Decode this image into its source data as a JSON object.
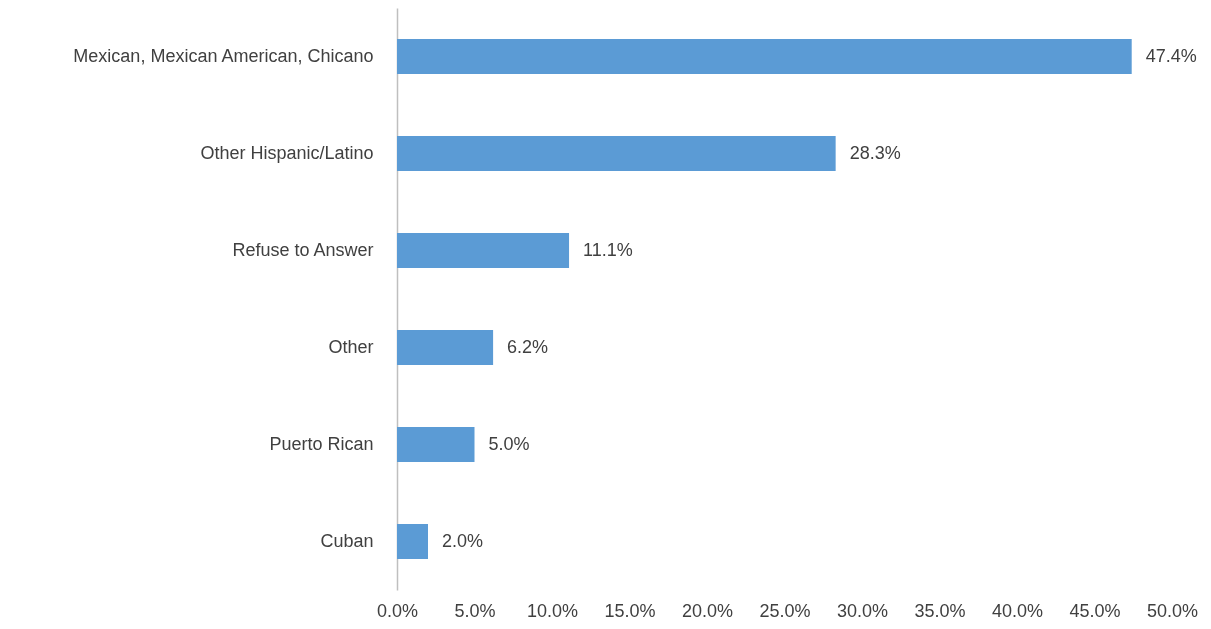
{
  "chart_data": {
    "type": "bar",
    "orientation": "horizontal",
    "categories": [
      "Mexican, Mexican American, Chicano",
      "Other Hispanic/Latino",
      "Refuse to Answer",
      "Other",
      "Puerto Rican",
      "Cuban"
    ],
    "values": [
      47.4,
      28.3,
      11.1,
      6.2,
      5.0,
      2.0
    ],
    "value_labels": [
      "47.4%",
      "28.3%",
      "11.1%",
      "6.2%",
      "5.0%",
      "2.0%"
    ],
    "color": "#5b9bd5",
    "xlim": [
      0,
      50
    ],
    "xticks": [
      {
        "value": 0,
        "label": "0.0%"
      },
      {
        "value": 5,
        "label": "5.0%"
      },
      {
        "value": 10,
        "label": "10.0%"
      },
      {
        "value": 15,
        "label": "15.0%"
      },
      {
        "value": 20,
        "label": "20.0%"
      },
      {
        "value": 25,
        "label": "25.0%"
      },
      {
        "value": 30,
        "label": "30.0%"
      },
      {
        "value": 35,
        "label": "35.0%"
      },
      {
        "value": 40,
        "label": "40.0%"
      },
      {
        "value": 45,
        "label": "45.0%"
      },
      {
        "value": 50,
        "label": "50.0%"
      }
    ],
    "grid": false
  }
}
